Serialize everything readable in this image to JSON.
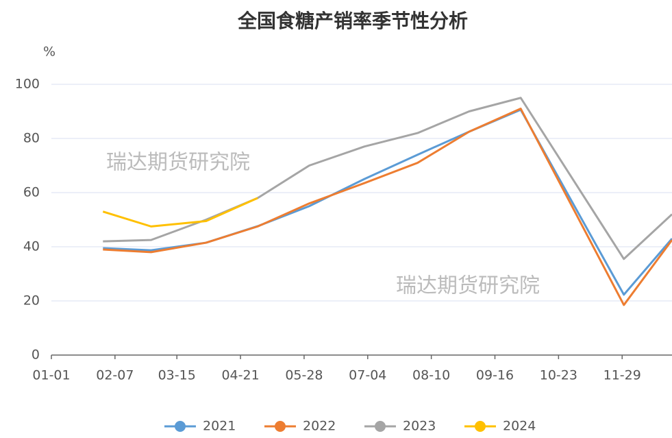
{
  "chart_data": {
    "type": "line",
    "title": "全国食糖产销率季节性分析",
    "y_unit": "%",
    "watermarks": [
      "瑞达期货研究院",
      "瑞达期货研究院"
    ],
    "x": [
      30,
      58,
      90,
      120,
      150,
      182,
      213,
      243,
      273,
      333,
      361
    ],
    "xlim": [
      0,
      361
    ],
    "xticks": [
      {
        "value": 0,
        "label": "01-01"
      },
      {
        "value": 37,
        "label": "02-07"
      },
      {
        "value": 73,
        "label": "03-15"
      },
      {
        "value": 110,
        "label": "04-21"
      },
      {
        "value": 147,
        "label": "05-28"
      },
      {
        "value": 184,
        "label": "07-04"
      },
      {
        "value": 221,
        "label": "08-10"
      },
      {
        "value": 258,
        "label": "09-16"
      },
      {
        "value": 295,
        "label": "10-23"
      },
      {
        "value": 332,
        "label": "11-29"
      }
    ],
    "ylim": [
      0,
      100
    ],
    "yticks": [
      0,
      20,
      40,
      60,
      80,
      100
    ],
    "grid": true,
    "series": [
      {
        "name": "2021",
        "color": "#5b9bd5",
        "values": [
          39.5,
          38.7,
          41.5,
          47.6,
          55,
          65,
          74,
          82.5,
          90.6,
          22.3,
          43
        ]
      },
      {
        "name": "2022",
        "color": "#ed7d31",
        "values": [
          39,
          38,
          41.5,
          47.5,
          56,
          63.5,
          71,
          82.5,
          91,
          18.5,
          42.5
        ]
      },
      {
        "name": "2023",
        "color": "#a5a5a5",
        "values": [
          42,
          42.5,
          50,
          58,
          70,
          77,
          82,
          90,
          95,
          35.5,
          52
        ]
      },
      {
        "name": "2024",
        "color": "#ffc000",
        "values": [
          53,
          47.5,
          49.5,
          58,
          null,
          null,
          null,
          null,
          null,
          null,
          null
        ]
      }
    ]
  }
}
